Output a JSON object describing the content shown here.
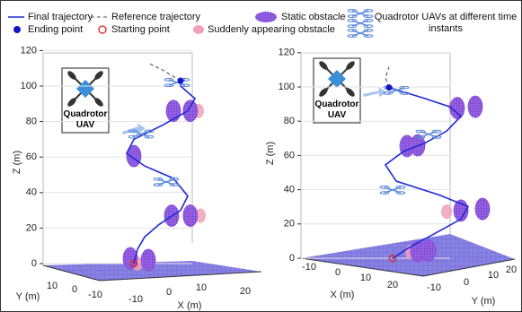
{
  "chart_data": [
    {
      "type": "line3d",
      "xlabel": "X (m)",
      "ylabel": "Y (m)",
      "zlabel": "Z (m)",
      "inset_label": "Quadrotor UAV",
      "xticks": [
        -10,
        0,
        10,
        20
      ],
      "yticks": [
        10,
        0,
        -10
      ],
      "zlim": [
        0,
        120
      ],
      "zticks": [
        0,
        20,
        40,
        60,
        80,
        100,
        120
      ],
      "series": [
        {
          "name": "Final trajectory",
          "kind": "line",
          "color": "#1f2bd6",
          "x": [
            -3,
            -2,
            0,
            4,
            10,
            12,
            8,
            0,
            -5,
            -3,
            5,
            12,
            14,
            10,
            10
          ],
          "z": [
            0,
            8,
            15,
            22,
            30,
            38,
            48,
            55,
            62,
            70,
            78,
            86,
            93,
            100,
            103
          ]
        },
        {
          "name": "Reference trajectory",
          "kind": "dash",
          "color": "#555555",
          "x": [
            10,
            5,
            1
          ],
          "z": [
            103,
            109,
            113
          ]
        },
        {
          "name": "Ending point",
          "kind": "end",
          "color": "#1414c8",
          "x": [
            10
          ],
          "z": [
            103
          ]
        },
        {
          "name": "Starting point",
          "kind": "start",
          "color": "#e02020",
          "x": [
            -3
          ],
          "z": [
            0
          ]
        },
        {
          "name": "Static obstacle",
          "kind": "static",
          "color": "#8a4fd8",
          "x": [
            -4,
            1,
            7.5,
            12.7,
            -3,
            8,
            12.7
          ],
          "z": [
            3,
            2,
            27,
            27,
            60.6,
            86,
            86
          ]
        },
        {
          "name": "Suddenly appearing obstacle",
          "kind": "sudden",
          "color": "#f0a0b8",
          "x": [
            -2,
            15.5,
            15
          ],
          "z": [
            0,
            27,
            86
          ]
        },
        {
          "name": "Quadrotor UAVs at different time instants",
          "kind": "uav",
          "color": "#5b8ad8",
          "x": [
            9,
            -1,
            6
          ],
          "z": [
            102,
            73,
            46
          ]
        }
      ]
    },
    {
      "type": "line3d",
      "xlabel": "X (m)",
      "ylabel": "Y (m)",
      "zlabel": "Z (m)",
      "inset_label": "Quadrotor UAV",
      "xticks": [
        -10,
        0,
        10,
        20
      ],
      "yticks": [
        -10,
        0,
        10,
        20
      ],
      "zlim": [
        0,
        120
      ],
      "zticks": [
        0,
        20,
        40,
        60,
        80,
        100,
        120
      ],
      "series": [
        {
          "kind": "line",
          "color": "#1f2bd6",
          "x": [
            -1,
            3,
            10,
            18,
            20,
            12,
            0,
            -3,
            2,
            8,
            14,
            18,
            15,
            8,
            -2
          ],
          "z": [
            0,
            5,
            12,
            20,
            27,
            35,
            45,
            55,
            62,
            66,
            72,
            80,
            86,
            92,
            100
          ]
        },
        {
          "kind": "dash",
          "color": "#555555",
          "x": [
            -2,
            -3,
            -2
          ],
          "z": [
            100,
            106,
            112
          ]
        },
        {
          "kind": "end",
          "color": "#1414c8",
          "x": [
            -2
          ],
          "z": [
            100
          ]
        },
        {
          "kind": "start",
          "color": "#e02020",
          "x": [
            -1
          ],
          "z": [
            0
          ]
        },
        {
          "kind": "static",
          "color": "#8a4fd8",
          "x": [
            6,
            9,
            18,
            24,
            3,
            6,
            17,
            22
          ],
          "z": [
            3,
            3,
            25,
            25,
            65,
            65,
            85,
            85
          ]
        },
        {
          "kind": "sudden",
          "color": "#f0a0b8",
          "x": [
            4,
            14,
            16
          ],
          "z": [
            3,
            25,
            86
          ]
        },
        {
          "kind": "uav",
          "color": "#5b8ad8",
          "x": [
            0,
            9,
            -1
          ],
          "z": [
            98,
            71,
            40
          ]
        }
      ]
    }
  ]
}
